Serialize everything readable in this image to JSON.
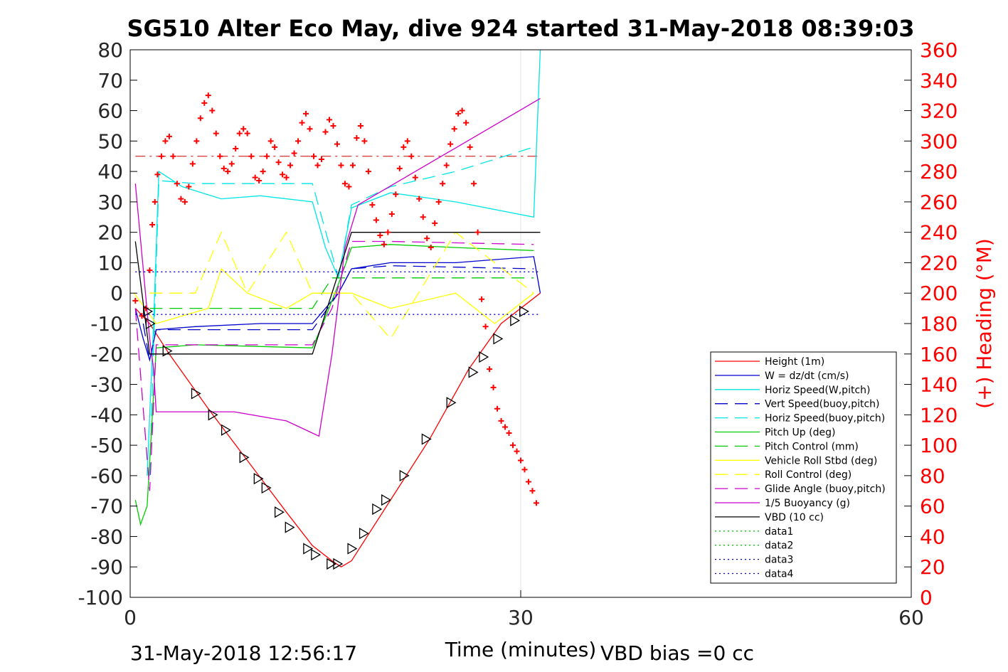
{
  "chart_data": {
    "type": "line",
    "title": "SG510 Alter Eco May, dive 924 started 31-May-2018 08:39:03",
    "xlabel": "Time (minutes)",
    "ylabel_right": "(+) Heading (°M)",
    "footer_left": "31-May-2018 12:56:17",
    "footer_right": "VBD bias =0 cc",
    "xlim": [
      0,
      60
    ],
    "ylim": [
      -100,
      80
    ],
    "ylim_right": [
      0,
      360
    ],
    "x_ticks": [
      0,
      30,
      60
    ],
    "y_ticks": [
      -100,
      -90,
      -80,
      -70,
      -60,
      -50,
      -40,
      -30,
      -20,
      -10,
      0,
      10,
      20,
      30,
      40,
      50,
      60,
      70,
      80
    ],
    "y_ticks_right": [
      0,
      20,
      40,
      60,
      80,
      100,
      120,
      140,
      160,
      180,
      200,
      220,
      240,
      260,
      280,
      300,
      320,
      340,
      360
    ],
    "grid": "x only",
    "legend_position": "bottom-right",
    "series": [
      {
        "name": "Height (1m)",
        "color": "#ff0000",
        "style": "solid",
        "x": [
          0.4,
          1.5,
          3,
          6,
          9,
          12,
          14,
          15.5,
          16.2,
          17,
          20,
          23,
          26,
          28.5,
          31.5
        ],
        "y": [
          -5,
          -10,
          -20,
          -38,
          -55,
          -72,
          -83,
          -88,
          -90,
          -88,
          -68,
          -48,
          -25,
          -10,
          0
        ]
      },
      {
        "name": "W = dz/dt (cm/s)",
        "color": "#0000cc",
        "style": "solid",
        "x": [
          0.4,
          1,
          1.5,
          2,
          5,
          10,
          14,
          15,
          16,
          17,
          20,
          25,
          31,
          31.5
        ],
        "y": [
          -5,
          -15,
          -22,
          -12,
          -11,
          -10,
          -10,
          -5,
          0,
          8,
          10,
          10,
          12,
          0
        ]
      },
      {
        "name": "Horiz Speed(W,pitch)",
        "color": "#00e5e5",
        "style": "solid",
        "x": [
          1.3,
          1.8,
          2.2,
          4,
          7,
          10,
          14,
          15,
          16,
          17,
          20,
          25,
          31,
          31.5
        ],
        "y": [
          -60,
          -10,
          40,
          35,
          31,
          32,
          30,
          15,
          5,
          28,
          33,
          30,
          25,
          80
        ]
      },
      {
        "name": "Vert Speed(buoy,pitch)",
        "color": "#0000cc",
        "style": "dashed",
        "x": [
          1,
          1.5,
          2,
          5,
          14,
          15,
          16,
          17,
          20,
          31
        ],
        "y": [
          -10,
          -22,
          -12,
          -12,
          -12,
          -6,
          0,
          8,
          9,
          8
        ]
      },
      {
        "name": "Horiz Speed(buoy,pitch)",
        "color": "#00e5e5",
        "style": "dashed",
        "x": [
          1.5,
          2.2,
          5,
          14,
          16,
          17,
          20,
          25,
          31
        ],
        "y": [
          -60,
          37,
          36,
          36,
          5,
          29,
          35,
          40,
          48
        ]
      },
      {
        "name": "Pitch Up (deg)",
        "color": "#00cc00",
        "style": "solid",
        "x": [
          0.4,
          0.8,
          1.3,
          2,
          5,
          14,
          15,
          16,
          17,
          20,
          25,
          31
        ],
        "y": [
          -68,
          -76,
          -70,
          -18,
          -17,
          -18,
          -8,
          3,
          15,
          16,
          15,
          14
        ]
      },
      {
        "name": "Pitch Control (mm)",
        "color": "#00cc00",
        "style": "dashed",
        "x": [
          1.5,
          14,
          15.5,
          31
        ],
        "y": [
          -5,
          -5,
          5,
          5
        ]
      },
      {
        "name": "Vehicle Roll Stbd (deg)",
        "color": "#ffff00",
        "style": "solid",
        "x": [
          0.3,
          2,
          6,
          7,
          9,
          12,
          14,
          17,
          20,
          25,
          28,
          31
        ],
        "y": [
          0,
          -10,
          -5,
          8,
          0,
          -5,
          0,
          0,
          -5,
          0,
          -10,
          0
        ]
      },
      {
        "name": "Roll Control (deg)",
        "color": "#ffff00",
        "style": "dashed",
        "x": [
          1.5,
          5,
          7,
          9,
          12,
          14,
          17,
          20,
          25,
          31
        ],
        "y": [
          0,
          0,
          20,
          0,
          20,
          0,
          0,
          -15,
          20,
          0
        ]
      },
      {
        "name": "Glide Angle (buoy,pitch)",
        "color": "#cc00cc",
        "style": "dashed",
        "x": [
          0.4,
          1.5,
          2,
          5,
          14,
          15.5,
          17,
          20,
          31
        ],
        "y": [
          -5,
          -65,
          -17,
          -17,
          -17,
          -5,
          17,
          17,
          16
        ]
      },
      {
        "name": "1/5 Buoyancy (g)",
        "color": "#cc00cc",
        "style": "solid",
        "x": [
          0.4,
          1.5,
          1.8,
          2,
          8,
          12,
          14,
          14.5,
          15.5,
          16.5,
          17.5,
          31.5
        ],
        "y": [
          36,
          -15,
          -25,
          -39,
          -39,
          -42,
          -46,
          -47,
          -20,
          15,
          29,
          64
        ]
      },
      {
        "name": "VBD (10 cc)",
        "color": "#000000",
        "style": "solid",
        "x": [
          0.4,
          1.5,
          14,
          17,
          31.5
        ],
        "y": [
          17,
          -20,
          -20,
          20,
          20
        ]
      },
      {
        "name": "data1",
        "color": "#00cc00",
        "style": "dotted",
        "x": [],
        "y": []
      },
      {
        "name": "data2",
        "color": "#00cc00",
        "style": "dotted",
        "x": [],
        "y": []
      },
      {
        "name": "data3",
        "color": "#0000cc",
        "style": "dotted",
        "x": [
          0.4,
          31.5
        ],
        "y": [
          7,
          7
        ]
      },
      {
        "name": "data4",
        "color": "#0000cc",
        "style": "dotted",
        "x": [
          0.4,
          31.5
        ],
        "y": [
          -7,
          -7
        ]
      }
    ],
    "reference_lines": [
      {
        "axis": "right",
        "value": 290,
        "color": "#cc0000",
        "style": "dashdot",
        "x_range": [
          0.4,
          31.5
        ]
      }
    ],
    "heading_points": {
      "axis": "right",
      "color": "#ff0000",
      "marker": "+",
      "x": [
        0.4,
        0.9,
        1.2,
        1.5,
        1.7,
        1.9,
        2.1,
        2.4,
        2.7,
        3.0,
        3.3,
        3.6,
        3.9,
        4.2,
        4.5,
        4.8,
        5.1,
        5.4,
        5.7,
        6.0,
        6.3,
        6.6,
        6.9,
        7.2,
        7.5,
        7.8,
        8.1,
        8.4,
        8.7,
        9.0,
        9.3,
        9.6,
        9.9,
        10.2,
        10.5,
        10.8,
        11.1,
        11.4,
        11.7,
        12.0,
        12.3,
        12.6,
        12.9,
        13.2,
        13.5,
        13.8,
        14.1,
        14.4,
        14.7,
        15.0,
        15.3,
        15.6,
        15.9,
        16.2,
        16.5,
        16.8,
        17.1,
        17.4,
        17.7,
        18.0,
        18.3,
        18.6,
        18.9,
        19.2,
        19.5,
        19.8,
        20.1,
        20.4,
        20.7,
        21.0,
        21.3,
        21.6,
        21.9,
        22.2,
        22.5,
        22.8,
        23.1,
        23.4,
        23.7,
        24.0,
        24.3,
        24.6,
        24.9,
        25.2,
        25.5,
        25.8,
        26.1,
        26.4,
        26.7,
        27.0,
        27.3,
        27.6,
        27.9,
        28.2,
        28.5,
        28.8,
        29.1,
        29.4,
        29.7,
        30.0,
        30.3,
        30.6,
        30.9,
        31.2
      ],
      "y": [
        195,
        185,
        190,
        215,
        245,
        260,
        278,
        290,
        300,
        303,
        290,
        272,
        262,
        260,
        270,
        285,
        300,
        315,
        325,
        330,
        320,
        305,
        290,
        282,
        280,
        285,
        295,
        305,
        308,
        305,
        290,
        276,
        274,
        280,
        290,
        300,
        296,
        286,
        278,
        276,
        284,
        292,
        300,
        312,
        318,
        308,
        290,
        284,
        288,
        306,
        314,
        310,
        298,
        284,
        272,
        270,
        284,
        302,
        310,
        300,
        280,
        258,
        248,
        238,
        232,
        240,
        252,
        265,
        282,
        296,
        300,
        290,
        276,
        262,
        250,
        236,
        230,
        246,
        260,
        272,
        284,
        298,
        308,
        318,
        320,
        312,
        296,
        272,
        240,
        196,
        178,
        150,
        138,
        124,
        116,
        112,
        108,
        100,
        96,
        90,
        84,
        76,
        70,
        62
      ]
    },
    "depth_markers": {
      "marker": "triangle",
      "color": "#000000",
      "x": [
        1.3,
        1.5,
        2.8,
        5,
        6.3,
        7.3,
        8.7,
        9.8,
        10.4,
        11.4,
        12.2,
        13.6,
        14.2,
        15.4,
        15.9,
        17,
        17.9,
        18.9,
        19.6,
        21,
        22.7,
        24.6,
        26.3,
        27.1,
        28.2,
        29.5,
        30.2
      ],
      "y": [
        -6,
        -10,
        -19,
        -33,
        -40,
        -45,
        -54,
        -61,
        -64,
        -72,
        -77,
        -84,
        -86,
        -89,
        -89,
        -84,
        -79,
        -71,
        -68,
        -60,
        -48,
        -36,
        -26,
        -21,
        -15,
        -9,
        -6
      ]
    }
  }
}
